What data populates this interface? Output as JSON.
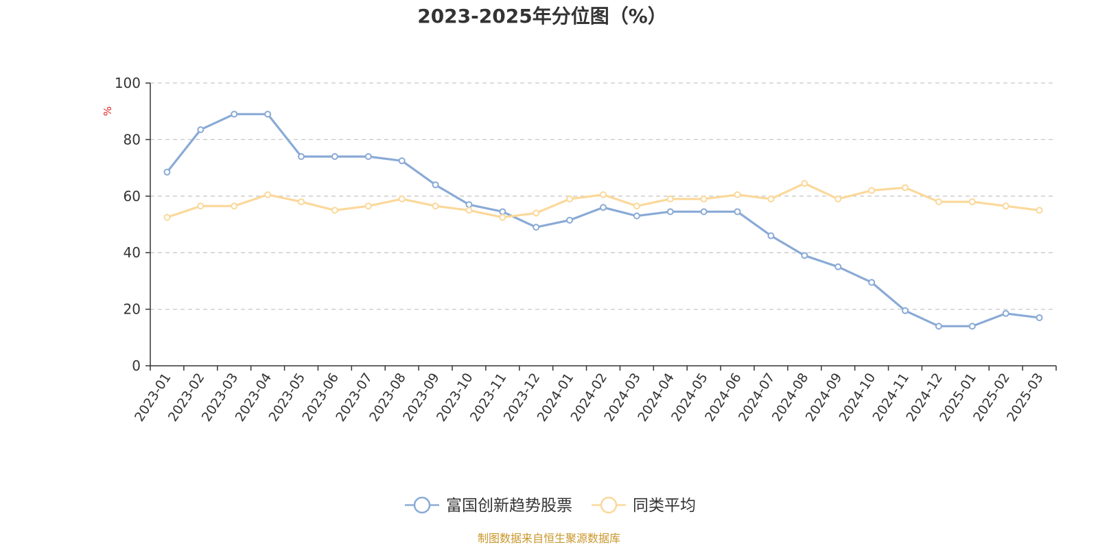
{
  "colors": {
    "series1": "#8aaad6",
    "series2": "#fbd89a",
    "unit": "#e02020",
    "source": "#c8962a",
    "grid": "#c8c8c8",
    "axis": "#333333"
  },
  "chart_data": {
    "type": "line",
    "title": "2023-2025年分位图（%）",
    "ylabel": "%",
    "ylim": [
      0,
      100
    ],
    "yticks": [
      0,
      20,
      40,
      60,
      80,
      100
    ],
    "grid": "horizontal-dashed",
    "legend_position": "bottom-center",
    "categories": [
      "2023-01",
      "2023-02",
      "2023-03",
      "2023-04",
      "2023-05",
      "2023-06",
      "2023-07",
      "2023-08",
      "2023-09",
      "2023-10",
      "2023-11",
      "2023-12",
      "2024-01",
      "2024-02",
      "2024-03",
      "2024-04",
      "2024-05",
      "2024-06",
      "2024-07",
      "2024-08",
      "2024-09",
      "2024-10",
      "2024-11",
      "2024-12",
      "2025-01",
      "2025-02",
      "2025-03"
    ],
    "series": [
      {
        "name": "富国创新趋势股票",
        "color": "#8aaad6",
        "values": [
          68.5,
          83.5,
          89,
          89,
          74,
          74,
          74,
          72.5,
          64,
          57,
          54.5,
          49,
          51.5,
          56,
          53,
          54.5,
          54.5,
          54.5,
          46,
          39,
          35,
          29.5,
          19.5,
          14,
          14,
          18.5,
          17
        ]
      },
      {
        "name": "同类平均",
        "color": "#fbd89a",
        "values": [
          52.5,
          56.5,
          56.5,
          60.5,
          58,
          55,
          56.5,
          59,
          56.5,
          55,
          52.5,
          54,
          59,
          60.5,
          56.5,
          59,
          59,
          60.5,
          59,
          64.5,
          59,
          62,
          63,
          58,
          58,
          56.5,
          55
        ]
      }
    ]
  },
  "source_text": "制图数据来自恒生聚源数据库"
}
